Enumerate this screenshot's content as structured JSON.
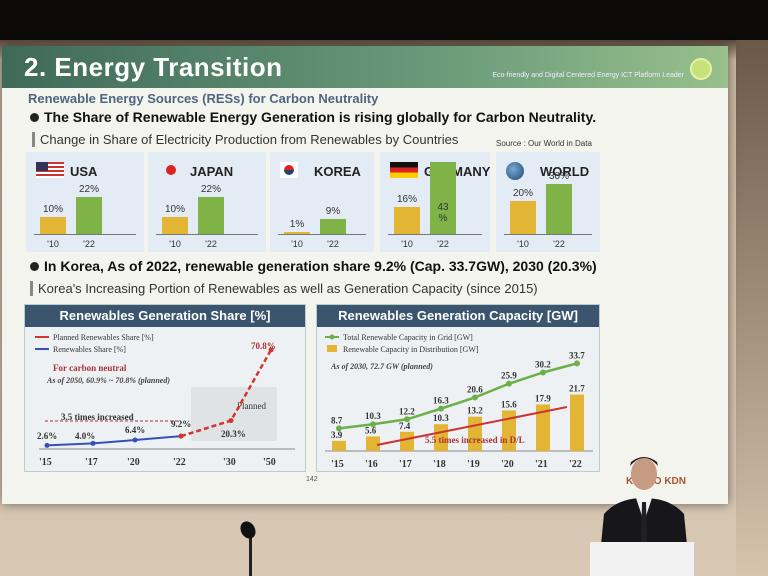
{
  "slide": {
    "title": "2. Energy Transition",
    "tagline": "Eco-friendly and Digital Centered Energy ICT Platform Leader",
    "subtitle": "Renewable Energy Sources (RESs) for Carbon Neutrality",
    "bullet1": "The Share of Renewable Energy Generation is rising globally for Carbon Neutrality.",
    "section1": "Change in Share of Electricity Production from Renewables by Countries",
    "source": "Source : Our World in Data",
    "countries": [
      {
        "name": "USA",
        "v10": "10%",
        "v22": "22%",
        "f10": 0.1,
        "f22": 0.22
      },
      {
        "name": "JAPAN",
        "v10": "10%",
        "v22": "22%",
        "f10": 0.1,
        "f22": 0.22
      },
      {
        "name": "KOREA",
        "v10": "1%",
        "v22": "9%",
        "f10": 0.01,
        "f22": 0.09
      },
      {
        "name": "GERMANY",
        "v10": "16%",
        "v22": "43 %",
        "f10": 0.16,
        "f22": 0.43
      },
      {
        "name": "WORLD",
        "v10": "20%",
        "v22": "30%",
        "f10": 0.2,
        "f22": 0.3
      }
    ],
    "year_a": "'10",
    "year_b": "'22",
    "bullet2": "In Korea, As of 2022, renewable generation share 9.2% (Cap. 33.7GW), 2030 (20.3%)",
    "section2": "Korea's Increasing Portion of Renewables as well as Generation Capacity (since 2015)",
    "page_number": "142",
    "logo_text": "KEPCO KDN"
  },
  "chart_data": [
    {
      "type": "line",
      "title": "Renewables Generation Share [%]",
      "x": [
        "'15",
        "'17",
        "'20",
        "'22",
        "'30",
        "'50"
      ],
      "series": [
        {
          "name": "Planned Renewables Share [%]",
          "values": [
            null,
            null,
            null,
            9.2,
            20.3,
            70.8
          ]
        },
        {
          "name": "Renewables Share [%]",
          "values": [
            2.6,
            4.0,
            6.4,
            9.2,
            null,
            null
          ]
        }
      ],
      "labels": [
        "2.6%",
        "4.0%",
        "6.4%",
        "9.2%",
        "20.3%",
        "70.8%"
      ],
      "annotations": [
        "For carbon neutral",
        "As of 2050, 60.9% ~ 70.8% (planned)",
        "3.5 times increased",
        "Planned"
      ],
      "colors": {
        "planned": "#d2362c",
        "actual": "#3551b8"
      }
    },
    {
      "type": "bar",
      "title": "Renewables Generation Capacity [GW]",
      "categories": [
        "'15",
        "'16",
        "'17",
        "'18",
        "'19",
        "'20",
        "'21",
        "'22"
      ],
      "series": [
        {
          "name": "Total Renewable Capacity in Grid [GW]",
          "values": [
            8.7,
            10.3,
            12.2,
            16.3,
            20.6,
            25.9,
            30.2,
            33.7
          ]
        },
        {
          "name": "Renewable Capacity in Distribution [GW]",
          "values": [
            3.9,
            5.6,
            7.4,
            10.3,
            13.2,
            15.6,
            17.9,
            21.7
          ]
        }
      ],
      "annotations": [
        "As of 2030, 72.7 GW (planned)",
        "5.5 times increased in D/L"
      ],
      "colors": {
        "total": "#6cb04a",
        "distribution": "#e2b634"
      }
    }
  ]
}
